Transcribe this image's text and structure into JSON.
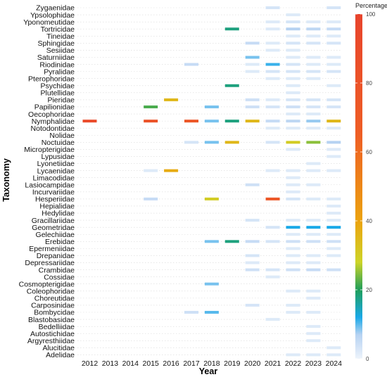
{
  "chart_data": {
    "type": "heatmap",
    "ylabel": "Taxonomy",
    "xlabel": "Year",
    "years": [
      "2012",
      "2013",
      "2014",
      "2015",
      "2016",
      "2017",
      "2018",
      "2019",
      "2020",
      "2021",
      "2022",
      "2023",
      "2024"
    ],
    "taxa": [
      "Zygaenidae",
      "Ypsolophidae",
      "Yponomeutidae",
      "Tortricidae",
      "Tineidae",
      "Sphingidae",
      "Sesiidae",
      "Saturniidae",
      "Riodinidae",
      "Pyralidae",
      "Pterophoridae",
      "Psychidae",
      "Plutellidae",
      "Pieridae",
      "Papilionidae",
      "Oecophoridae",
      "Nymphalidae",
      "Notodontidae",
      "Nolidae",
      "Noctuidae",
      "Micropterigidae",
      "Lypusidae",
      "Lyonetiidae",
      "Lycaenidae",
      "Limacodidae",
      "Lasiocampidae",
      "Incurvariidae",
      "Hesperiidae",
      "Hepialidae",
      "Hedylidae",
      "Gracillariidae",
      "Geometridae",
      "Gelechiidae",
      "Erebidae",
      "Epermeniidae",
      "Drepanidae",
      "Depressariidae",
      "Crambidae",
      "Cossidae",
      "Cosmopterigidae",
      "Coleophoridae",
      "Choreutidae",
      "Carposinidae",
      "Bombycidae",
      "Blastobasidae",
      "Bedelliidae",
      "Autostichidae",
      "Argyresthiidae",
      "Alucitidae",
      "Adelidae"
    ],
    "legend": {
      "title": "Percentage",
      "min": 0,
      "max": 100,
      "ticks": [
        0,
        20,
        40,
        60,
        80,
        100
      ]
    },
    "cells": [
      {
        "taxon": "Zygaenidae",
        "year": "2021",
        "value": 3
      },
      {
        "taxon": "Zygaenidae",
        "year": "2024",
        "value": 3
      },
      {
        "taxon": "Ypsolophidae",
        "year": "2022",
        "value": 2
      },
      {
        "taxon": "Yponomeutidae",
        "year": "2021",
        "value": 2
      },
      {
        "taxon": "Yponomeutidae",
        "year": "2022",
        "value": 3
      },
      {
        "taxon": "Yponomeutidae",
        "year": "2023",
        "value": 2
      },
      {
        "taxon": "Yponomeutidae",
        "year": "2024",
        "value": 2
      },
      {
        "taxon": "Tortricidae",
        "year": "2019",
        "value": 18
      },
      {
        "taxon": "Tortricidae",
        "year": "2021",
        "value": 2
      },
      {
        "taxon": "Tortricidae",
        "year": "2022",
        "value": 7
      },
      {
        "taxon": "Tortricidae",
        "year": "2023",
        "value": 6
      },
      {
        "taxon": "Tortricidae",
        "year": "2024",
        "value": 5
      },
      {
        "taxon": "Tineidae",
        "year": "2022",
        "value": 2
      },
      {
        "taxon": "Tineidae",
        "year": "2023",
        "value": 2
      },
      {
        "taxon": "Tineidae",
        "year": "2024",
        "value": 2
      },
      {
        "taxon": "Sphingidae",
        "year": "2020",
        "value": 5
      },
      {
        "taxon": "Sphingidae",
        "year": "2021",
        "value": 2
      },
      {
        "taxon": "Sphingidae",
        "year": "2022",
        "value": 3
      },
      {
        "taxon": "Sphingidae",
        "year": "2023",
        "value": 3
      },
      {
        "taxon": "Sphingidae",
        "year": "2024",
        "value": 3
      },
      {
        "taxon": "Sesiidae",
        "year": "2021",
        "value": 2
      },
      {
        "taxon": "Sesiidae",
        "year": "2022",
        "value": 2
      },
      {
        "taxon": "Saturniidae",
        "year": "2020",
        "value": 9
      },
      {
        "taxon": "Saturniidae",
        "year": "2022",
        "value": 2
      },
      {
        "taxon": "Saturniidae",
        "year": "2023",
        "value": 2
      },
      {
        "taxon": "Saturniidae",
        "year": "2024",
        "value": 2
      },
      {
        "taxon": "Riodinidae",
        "year": "2017",
        "value": 5
      },
      {
        "taxon": "Riodinidae",
        "year": "2020",
        "value": 2
      },
      {
        "taxon": "Riodinidae",
        "year": "2021",
        "value": 11
      },
      {
        "taxon": "Riodinidae",
        "year": "2022",
        "value": 3
      },
      {
        "taxon": "Riodinidae",
        "year": "2023",
        "value": 2
      },
      {
        "taxon": "Riodinidae",
        "year": "2024",
        "value": 2
      },
      {
        "taxon": "Pyralidae",
        "year": "2020",
        "value": 2
      },
      {
        "taxon": "Pyralidae",
        "year": "2021",
        "value": 3
      },
      {
        "taxon": "Pyralidae",
        "year": "2022",
        "value": 3
      },
      {
        "taxon": "Pyralidae",
        "year": "2023",
        "value": 3
      },
      {
        "taxon": "Pyralidae",
        "year": "2024",
        "value": 3
      },
      {
        "taxon": "Pterophoridae",
        "year": "2021",
        "value": 2
      },
      {
        "taxon": "Pterophoridae",
        "year": "2022",
        "value": 2
      },
      {
        "taxon": "Pterophoridae",
        "year": "2023",
        "value": 2
      },
      {
        "taxon": "Psychidae",
        "year": "2019",
        "value": 18
      },
      {
        "taxon": "Psychidae",
        "year": "2022",
        "value": 2
      },
      {
        "taxon": "Psychidae",
        "year": "2024",
        "value": 2
      },
      {
        "taxon": "Plutellidae",
        "year": "2022",
        "value": 2
      },
      {
        "taxon": "Pieridae",
        "year": "2016",
        "value": 35
      },
      {
        "taxon": "Pieridae",
        "year": "2020",
        "value": 4
      },
      {
        "taxon": "Pieridae",
        "year": "2021",
        "value": 2
      },
      {
        "taxon": "Pieridae",
        "year": "2022",
        "value": 3
      },
      {
        "taxon": "Pieridae",
        "year": "2023",
        "value": 3
      },
      {
        "taxon": "Pieridae",
        "year": "2024",
        "value": 3
      },
      {
        "taxon": "Papilionidae",
        "year": "2015",
        "value": 22
      },
      {
        "taxon": "Papilionidae",
        "year": "2018",
        "value": 9
      },
      {
        "taxon": "Papilionidae",
        "year": "2020",
        "value": 4
      },
      {
        "taxon": "Papilionidae",
        "year": "2021",
        "value": 3
      },
      {
        "taxon": "Papilionidae",
        "year": "2022",
        "value": 4
      },
      {
        "taxon": "Papilionidae",
        "year": "2023",
        "value": 3
      },
      {
        "taxon": "Papilionidae",
        "year": "2024",
        "value": 3
      },
      {
        "taxon": "Oecophoridae",
        "year": "2022",
        "value": 2
      },
      {
        "taxon": "Oecophoridae",
        "year": "2023",
        "value": 2
      },
      {
        "taxon": "Nymphalidae",
        "year": "2012",
        "value": 90
      },
      {
        "taxon": "Nymphalidae",
        "year": "2015",
        "value": 80
      },
      {
        "taxon": "Nymphalidae",
        "year": "2017",
        "value": 75
      },
      {
        "taxon": "Nymphalidae",
        "year": "2018",
        "value": 9
      },
      {
        "taxon": "Nymphalidae",
        "year": "2019",
        "value": 18
      },
      {
        "taxon": "Nymphalidae",
        "year": "2020",
        "value": 35
      },
      {
        "taxon": "Nymphalidae",
        "year": "2021",
        "value": 5
      },
      {
        "taxon": "Nymphalidae",
        "year": "2022",
        "value": 6
      },
      {
        "taxon": "Nymphalidae",
        "year": "2023",
        "value": 8
      },
      {
        "taxon": "Nymphalidae",
        "year": "2024",
        "value": 35
      },
      {
        "taxon": "Notodontidae",
        "year": "2021",
        "value": 2
      },
      {
        "taxon": "Notodontidae",
        "year": "2022",
        "value": 2
      },
      {
        "taxon": "Notodontidae",
        "year": "2023",
        "value": 2
      },
      {
        "taxon": "Notodontidae",
        "year": "2024",
        "value": 2
      },
      {
        "taxon": "Noctuidae",
        "year": "2017",
        "value": 3
      },
      {
        "taxon": "Noctuidae",
        "year": "2018",
        "value": 9
      },
      {
        "taxon": "Noctuidae",
        "year": "2019",
        "value": 35
      },
      {
        "taxon": "Noctuidae",
        "year": "2021",
        "value": 3
      },
      {
        "taxon": "Noctuidae",
        "year": "2022",
        "value": 30
      },
      {
        "taxon": "Noctuidae",
        "year": "2023",
        "value": 25
      },
      {
        "taxon": "Noctuidae",
        "year": "2024",
        "value": 7
      },
      {
        "taxon": "Micropterigidae",
        "year": "2022",
        "value": 2
      },
      {
        "taxon": "Micropterigidae",
        "year": "2024",
        "value": 2
      },
      {
        "taxon": "Lypusidae",
        "year": "2024",
        "value": 2
      },
      {
        "taxon": "Lyonetiidae",
        "year": "2023",
        "value": 2
      },
      {
        "taxon": "Lycaenidae",
        "year": "2015",
        "value": 2
      },
      {
        "taxon": "Lycaenidae",
        "year": "2016",
        "value": 38
      },
      {
        "taxon": "Lycaenidae",
        "year": "2021",
        "value": 2
      },
      {
        "taxon": "Lycaenidae",
        "year": "2022",
        "value": 2
      },
      {
        "taxon": "Lycaenidae",
        "year": "2023",
        "value": 2
      },
      {
        "taxon": "Lycaenidae",
        "year": "2024",
        "value": 2
      },
      {
        "taxon": "Limacodidae",
        "year": "2022",
        "value": 2
      },
      {
        "taxon": "Lasiocampidae",
        "year": "2020",
        "value": 4
      },
      {
        "taxon": "Lasiocampidae",
        "year": "2022",
        "value": 2
      },
      {
        "taxon": "Lasiocampidae",
        "year": "2023",
        "value": 2
      },
      {
        "taxon": "Incurvariidae",
        "year": "2022",
        "value": 2
      },
      {
        "taxon": "Hesperiidae",
        "year": "2015",
        "value": 5
      },
      {
        "taxon": "Hesperiidae",
        "year": "2018",
        "value": 30
      },
      {
        "taxon": "Hesperiidae",
        "year": "2021",
        "value": 75
      },
      {
        "taxon": "Hesperiidae",
        "year": "2022",
        "value": 3
      },
      {
        "taxon": "Hesperiidae",
        "year": "2023",
        "value": 2
      },
      {
        "taxon": "Hesperiidae",
        "year": "2024",
        "value": 2
      },
      {
        "taxon": "Hepialidae",
        "year": "2024",
        "value": 2
      },
      {
        "taxon": "Hedylidae",
        "year": "2024",
        "value": 2
      },
      {
        "taxon": "Gracillariidae",
        "year": "2020",
        "value": 3
      },
      {
        "taxon": "Gracillariidae",
        "year": "2022",
        "value": 2
      },
      {
        "taxon": "Gracillariidae",
        "year": "2023",
        "value": 2
      },
      {
        "taxon": "Gracillariidae",
        "year": "2024",
        "value": 2
      },
      {
        "taxon": "Geometridae",
        "year": "2021",
        "value": 3
      },
      {
        "taxon": "Geometridae",
        "year": "2022",
        "value": 12
      },
      {
        "taxon": "Geometridae",
        "year": "2023",
        "value": 12
      },
      {
        "taxon": "Geometridae",
        "year": "2024",
        "value": 12
      },
      {
        "taxon": "Gelechiidae",
        "year": "2022",
        "value": 2
      },
      {
        "taxon": "Gelechiidae",
        "year": "2023",
        "value": 2
      },
      {
        "taxon": "Gelechiidae",
        "year": "2024",
        "value": 2
      },
      {
        "taxon": "Erebidae",
        "year": "2018",
        "value": 9
      },
      {
        "taxon": "Erebidae",
        "year": "2019",
        "value": 18
      },
      {
        "taxon": "Erebidae",
        "year": "2020",
        "value": 5
      },
      {
        "taxon": "Erebidae",
        "year": "2021",
        "value": 3
      },
      {
        "taxon": "Erebidae",
        "year": "2022",
        "value": 4
      },
      {
        "taxon": "Erebidae",
        "year": "2023",
        "value": 4
      },
      {
        "taxon": "Erebidae",
        "year": "2024",
        "value": 4
      },
      {
        "taxon": "Epermeniidae",
        "year": "2022",
        "value": 2
      },
      {
        "taxon": "Epermeniidae",
        "year": "2024",
        "value": 2
      },
      {
        "taxon": "Drepanidae",
        "year": "2020",
        "value": 3
      },
      {
        "taxon": "Drepanidae",
        "year": "2022",
        "value": 2
      },
      {
        "taxon": "Drepanidae",
        "year": "2023",
        "value": 2
      },
      {
        "taxon": "Drepanidae",
        "year": "2024",
        "value": 2
      },
      {
        "taxon": "Depressariidae",
        "year": "2020",
        "value": 2
      },
      {
        "taxon": "Depressariidae",
        "year": "2022",
        "value": 2
      },
      {
        "taxon": "Depressariidae",
        "year": "2023",
        "value": 2
      },
      {
        "taxon": "Crambidae",
        "year": "2020",
        "value": 4
      },
      {
        "taxon": "Crambidae",
        "year": "2021",
        "value": 3
      },
      {
        "taxon": "Crambidae",
        "year": "2022",
        "value": 4
      },
      {
        "taxon": "Crambidae",
        "year": "2023",
        "value": 5
      },
      {
        "taxon": "Crambidae",
        "year": "2024",
        "value": 4
      },
      {
        "taxon": "Cossidae",
        "year": "2021",
        "value": 2
      },
      {
        "taxon": "Cosmopterigidae",
        "year": "2018",
        "value": 9
      },
      {
        "taxon": "Coleophoridae",
        "year": "2022",
        "value": 2
      },
      {
        "taxon": "Coleophoridae",
        "year": "2023",
        "value": 2
      },
      {
        "taxon": "Choreutidae",
        "year": "2023",
        "value": 2
      },
      {
        "taxon": "Carposinidae",
        "year": "2020",
        "value": 3
      },
      {
        "taxon": "Carposinidae",
        "year": "2022",
        "value": 2
      },
      {
        "taxon": "Bombycidae",
        "year": "2017",
        "value": 4
      },
      {
        "taxon": "Bombycidae",
        "year": "2018",
        "value": 10
      },
      {
        "taxon": "Bombycidae",
        "year": "2022",
        "value": 2
      },
      {
        "taxon": "Bombycidae",
        "year": "2023",
        "value": 2
      },
      {
        "taxon": "Blastobasidae",
        "year": "2021",
        "value": 2
      },
      {
        "taxon": "Bedelliidae",
        "year": "2023",
        "value": 2
      },
      {
        "taxon": "Autostichidae",
        "year": "2023",
        "value": 2
      },
      {
        "taxon": "Argyresthiidae",
        "year": "2023",
        "value": 2
      },
      {
        "taxon": "Alucitidae",
        "year": "2024",
        "value": 2
      },
      {
        "taxon": "Adelidae",
        "year": "2022",
        "value": 2
      },
      {
        "taxon": "Adelidae",
        "year": "2023",
        "value": 2
      },
      {
        "taxon": "Adelidae",
        "year": "2024",
        "value": 2
      }
    ]
  }
}
